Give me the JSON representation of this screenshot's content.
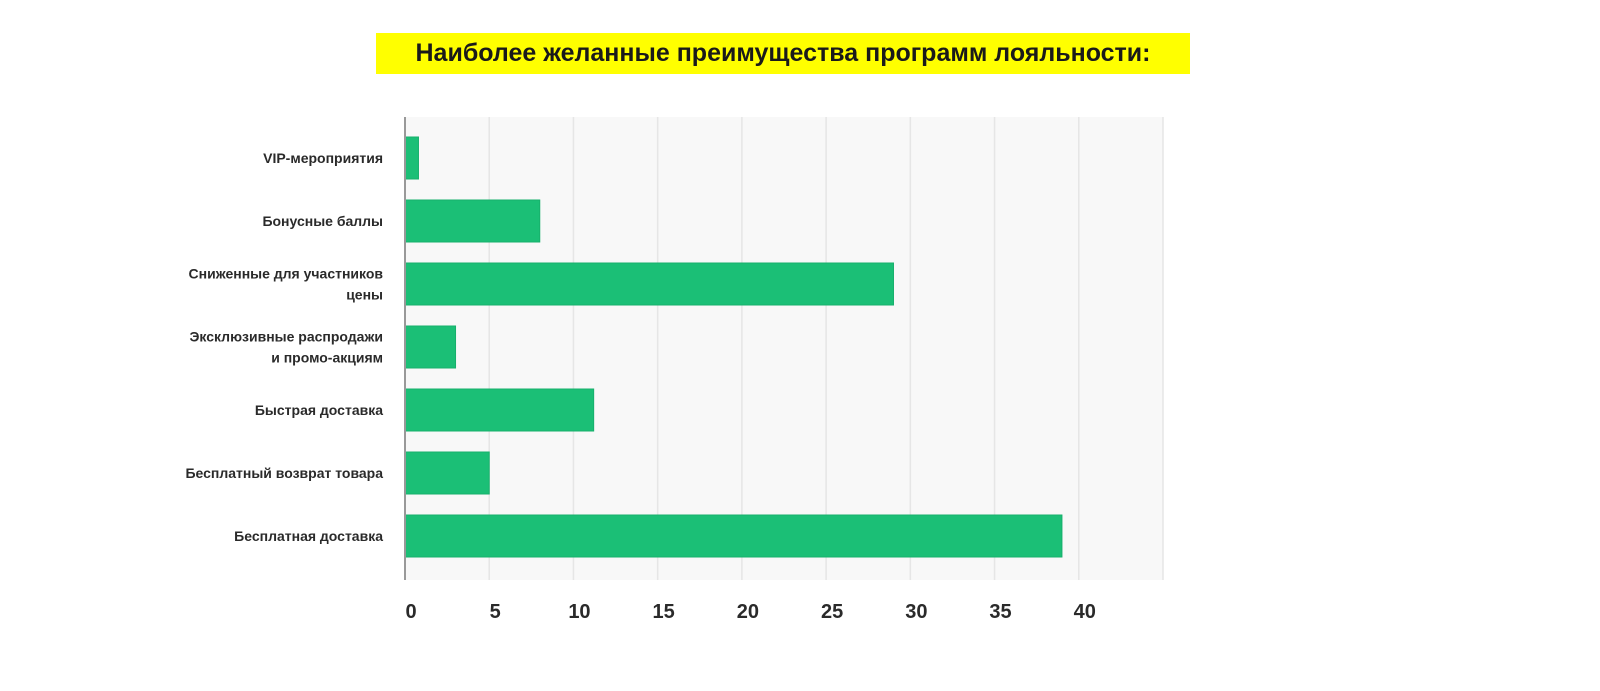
{
  "chart_data": {
    "type": "bar",
    "orientation": "horizontal",
    "title": "Наиболее желанные преимущества программ лояльности:",
    "categories": [
      [
        "VIP-мероприятия"
      ],
      [
        "Бонусные баллы"
      ],
      [
        "Сниженные для участников",
        "цены"
      ],
      [
        "Эксклюзивные распродажи",
        "и промо-акциям"
      ],
      [
        "Быстрая доставка"
      ],
      [
        "Бесплатный возврат товара"
      ],
      [
        "Бесплатная доставка"
      ]
    ],
    "values": [
      0.8,
      8,
      29,
      3,
      11.2,
      5,
      39
    ],
    "xlim": [
      0,
      45
    ],
    "xticks": [
      0,
      5,
      10,
      15,
      20,
      25,
      30,
      35,
      40
    ],
    "grid": true,
    "colors": {
      "bar": "#1bbf76",
      "plot_bg": "#f8f8f8",
      "title_bg": "#ffff00"
    }
  }
}
